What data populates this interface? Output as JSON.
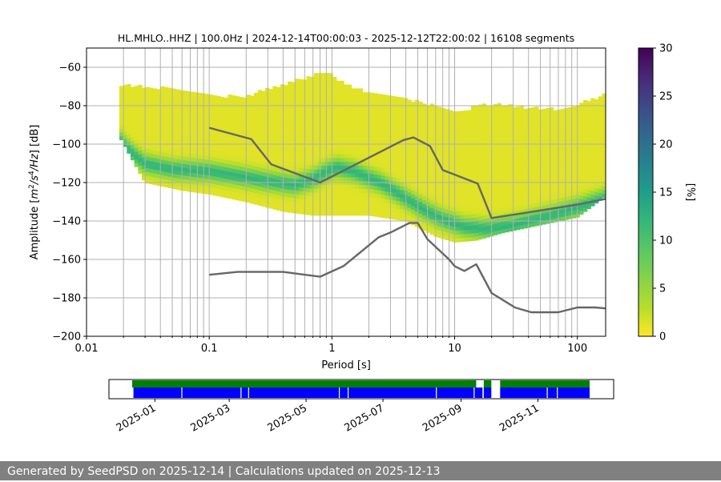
{
  "chart_data": [
    {
      "type": "heatmap",
      "title": "HL.MHLO..HHZ | 100.0Hz | 2024-12-14T00:00:03 - 2025-12-12T22:00:02 | 16108 segments",
      "xlabel": "Period [s]",
      "ylabel_parts": [
        "Amplitude [",
        "m",
        "2",
        "/",
        "s",
        "4",
        "/",
        "Hz",
        "] [dB]"
      ],
      "xscale": "log",
      "xlim": [
        0.01,
        170
      ],
      "ylim": [
        -200,
        -50
      ],
      "x_ticks": [
        {
          "v": 0.01,
          "label": "0.01"
        },
        {
          "v": 0.1,
          "label": "0.1"
        },
        {
          "v": 1,
          "label": "1"
        },
        {
          "v": 10,
          "label": "10"
        },
        {
          "v": 100,
          "label": "100"
        }
      ],
      "y_ticks": [
        {
          "v": -60,
          "label": "−60"
        },
        {
          "v": -80,
          "label": "−80"
        },
        {
          "v": -100,
          "label": "−100"
        },
        {
          "v": -120,
          "label": "−120"
        },
        {
          "v": -140,
          "label": "−140"
        },
        {
          "v": -160,
          "label": "−160"
        },
        {
          "v": -180,
          "label": "−180"
        },
        {
          "v": -200,
          "label": "−200"
        }
      ],
      "grid": true,
      "colormap": "viridis_r",
      "colorbar": {
        "label": "[%]",
        "range": [
          0,
          30
        ],
        "ticks": [
          "0",
          "5",
          "10",
          "15",
          "20",
          "25",
          "30"
        ]
      },
      "psd_density": {
        "x_start": 0.0185,
        "x_end": 170,
        "envelope_top": [
          [
            0.0185,
            -70
          ],
          [
            0.05,
            -72
          ],
          [
            0.1,
            -76
          ],
          [
            0.2,
            -76
          ],
          [
            0.3,
            -72
          ],
          [
            0.5,
            -68
          ],
          [
            0.8,
            -64
          ],
          [
            1.0,
            -65
          ],
          [
            1.5,
            -72
          ],
          [
            3,
            -76
          ],
          [
            6,
            -80
          ],
          [
            10,
            -84
          ],
          [
            20,
            -80
          ],
          [
            40,
            -82
          ],
          [
            70,
            -83
          ],
          [
            100,
            -80
          ],
          [
            170,
            -75
          ]
        ],
        "envelope_bottom": [
          [
            0.0185,
            -96
          ],
          [
            0.03,
            -120
          ],
          [
            0.06,
            -124
          ],
          [
            0.1,
            -126
          ],
          [
            0.2,
            -130
          ],
          [
            0.4,
            -135
          ],
          [
            0.7,
            -137
          ],
          [
            1.0,
            -137
          ],
          [
            2,
            -137
          ],
          [
            4,
            -140
          ],
          [
            7,
            -148
          ],
          [
            10,
            -151
          ],
          [
            15,
            -150
          ],
          [
            25,
            -146
          ],
          [
            50,
            -142
          ],
          [
            100,
            -138
          ],
          [
            170,
            -127
          ]
        ],
        "mode": [
          [
            0.0185,
            -98
          ],
          [
            0.025,
            -106
          ],
          [
            0.03,
            -110
          ],
          [
            0.05,
            -113
          ],
          [
            0.1,
            -114
          ],
          [
            0.2,
            -117
          ],
          [
            0.3,
            -119
          ],
          [
            0.5,
            -121
          ],
          [
            0.7,
            -118
          ],
          [
            0.9,
            -114
          ],
          [
            1.1,
            -112
          ],
          [
            1.5,
            -114
          ],
          [
            2.5,
            -120
          ],
          [
            4,
            -128
          ],
          [
            6,
            -135
          ],
          [
            8,
            -139
          ],
          [
            12,
            -143
          ],
          [
            18,
            -144
          ],
          [
            30,
            -142
          ],
          [
            60,
            -137
          ],
          [
            100,
            -133
          ],
          [
            170,
            -128
          ]
        ]
      },
      "series": [
        {
          "name": "",
          "color": "#666666",
          "points": [
            [
              0.1,
              -91.5
            ],
            [
              0.22,
              -97.4
            ],
            [
              0.32,
              -110.5
            ],
            [
              0.8,
              -120
            ],
            [
              3.8,
              -98.0
            ],
            [
              4.6,
              -96.5
            ],
            [
              6.3,
              -101
            ],
            [
              8,
              -113.5
            ],
            [
              15.4,
              -120.5
            ],
            [
              20,
              -138.5
            ],
            [
              100,
              -131.5
            ],
            [
              170,
              -128.5
            ]
          ]
        },
        {
          "name": "",
          "color": "#666666",
          "points": [
            [
              0.1,
              -168.0
            ],
            [
              0.17,
              -166.5
            ],
            [
              0.4,
              -166.5
            ],
            [
              0.8,
              -169.0
            ],
            [
              1.24,
              -163.5
            ],
            [
              2.4,
              -148.5
            ],
            [
              3.0,
              -146.0
            ],
            [
              4.3,
              -141.0
            ],
            [
              5.0,
              -141.0
            ],
            [
              6.0,
              -149.5
            ],
            [
              9.0,
              -160.0
            ],
            [
              10.0,
              -163.5
            ],
            [
              12.0,
              -166.0
            ],
            [
              15.0,
              -162.5
            ],
            [
              20.0,
              -177.5
            ],
            [
              31.0,
              -185.0
            ],
            [
              42.0,
              -187.5
            ],
            [
              70.0,
              -187.5
            ],
            [
              100.0,
              -185.0
            ],
            [
              140.0,
              -185.0
            ],
            [
              170.0,
              -185.5
            ]
          ]
        }
      ],
      "grid_lines_x": [
        0.02,
        0.03,
        0.04,
        0.05,
        0.06,
        0.07,
        0.08,
        0.09,
        0.2,
        0.3,
        0.4,
        0.5,
        0.6,
        0.7,
        0.8,
        0.9,
        2,
        3,
        4,
        5,
        6,
        7,
        8,
        9,
        20,
        30,
        40,
        50,
        60,
        70,
        80,
        90
      ]
    },
    {
      "type": "timeline",
      "x_range": [
        "2024-12-14",
        "2025-12-12"
      ],
      "x_ticks": [
        "2025-01",
        "2025-03",
        "2025-05",
        "2025-07",
        "2025-09",
        "2025-11"
      ],
      "x_tick_dates": [
        "2025-01-01",
        "2025-03-01",
        "2025-05-01",
        "2025-07-01",
        "2025-09-01",
        "2025-11-01"
      ],
      "coverage_colors": {
        "upper": "#008000",
        "lower": "#0000ff"
      },
      "upper_spans": [
        [
          "2024-12-14",
          "2025-09-13"
        ],
        [
          "2025-09-19",
          "2025-09-25"
        ],
        [
          "2025-10-02",
          "2025-12-12"
        ]
      ],
      "lower_spans": [
        [
          "2024-12-15",
          "2025-09-18"
        ],
        [
          "2025-09-19",
          "2025-09-25"
        ],
        [
          "2025-10-02",
          "2025-12-12"
        ]
      ],
      "lower_gaps": [
        "2025-01-22",
        "2025-03-10",
        "2025-03-16",
        "2025-05-27",
        "2025-06-03",
        "2025-08-12",
        "2025-09-11",
        "2025-11-08",
        "2025-11-16"
      ]
    }
  ],
  "footer": {
    "text": "Generated by SeedPSD on 2025-12-14 | Calculations updated on 2025-12-13"
  }
}
